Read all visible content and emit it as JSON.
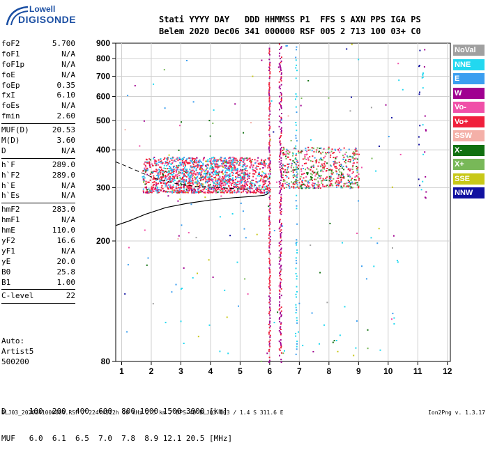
{
  "logo": {
    "top": "Lowell",
    "bottom": "DIGISONDE"
  },
  "header": {
    "line1": "Stati YYYY DAY   DDD HHMMSS P1  FFS S AXN PPS IGA PS",
    "line2": "Belem 2020 Dec06 341 000000 RSF 005 2 713 100 03+ C0"
  },
  "params": [
    {
      "k": "foF2",
      "v": "5.700"
    },
    {
      "k": "foF1",
      "v": "N/A"
    },
    {
      "k": "foF1p",
      "v": "N/A"
    },
    {
      "k": "foE",
      "v": "N/A"
    },
    {
      "k": "foEp",
      "v": "0.35"
    },
    {
      "k": "fxI",
      "v": "6.10"
    },
    {
      "k": "foEs",
      "v": "N/A"
    },
    {
      "k": "fmin",
      "v": "2.60"
    },
    {
      "sep": true
    },
    {
      "k": "MUF(D)",
      "v": "20.53"
    },
    {
      "k": "M(D)",
      "v": "3.60"
    },
    {
      "k": "D",
      "v": "N/A"
    },
    {
      "sep": true
    },
    {
      "k": "h`F",
      "v": "289.0"
    },
    {
      "k": "h`F2",
      "v": "289.0"
    },
    {
      "k": "h`E",
      "v": "N/A"
    },
    {
      "k": "h`Es",
      "v": "N/A"
    },
    {
      "sep": true
    },
    {
      "k": "hmF2",
      "v": "283.0"
    },
    {
      "k": "hmF1",
      "v": "N/A"
    },
    {
      "k": "hmE",
      "v": "110.0"
    },
    {
      "k": "yF2",
      "v": "16.6"
    },
    {
      "k": "yF1",
      "v": "N/A"
    },
    {
      "k": "yE",
      "v": "20.0"
    },
    {
      "k": "B0",
      "v": "25.8"
    },
    {
      "k": "B1",
      "v": "1.00"
    },
    {
      "sep": true
    },
    {
      "k": "C-level",
      "v": "22"
    },
    {
      "sep": true
    }
  ],
  "auto": {
    "line1": "Auto:",
    "line2": "Artist5",
    "line3": "500200"
  },
  "legend": [
    {
      "label": "NoVal",
      "color": "#a0a0a0"
    },
    {
      "label": "NNE",
      "color": "#22d8f0"
    },
    {
      "label": "E",
      "color": "#3a9ef0"
    },
    {
      "label": "W",
      "color": "#a00090"
    },
    {
      "label": "Vo-",
      "color": "#f050a8"
    },
    {
      "label": "Vo+",
      "color": "#f0203c"
    },
    {
      "label": "SSW",
      "color": "#f4b0a8"
    },
    {
      "label": "X-",
      "color": "#107010"
    },
    {
      "label": "X+",
      "color": "#78b858"
    },
    {
      "label": "SSE",
      "color": "#c8c818"
    },
    {
      "label": "NNW",
      "color": "#1010a0"
    }
  ],
  "bottom": {
    "line1": "D     100  200  400  600  800 1000 1500 3000 [km]",
    "line2": "MUF   6.0  6.1  6.5  7.0  7.8  8.9 12.1 20.5 [MHz]"
  },
  "footer": {
    "left": "BLJ03_2020341000000.RSF / 224fx512h 50 kHz 2.5 km / DPS-4D BLJ03 103 / 1.4 S 311.6 E",
    "right": "Ion2Png v. 1.3.17"
  },
  "chart_data": {
    "type": "scatter",
    "xlim": [
      0.8,
      12.1
    ],
    "ylim": [
      80,
      900
    ],
    "y_scale": "log",
    "xticks": [
      1,
      2,
      3,
      4,
      5,
      6,
      7,
      8,
      9,
      10,
      11,
      12
    ],
    "yticks": [
      80,
      200,
      300,
      400,
      500,
      600,
      700,
      800,
      900
    ],
    "dashed_trace": [
      [
        0.8,
        365
      ],
      [
        1.2,
        352
      ],
      [
        1.7,
        335
      ],
      [
        2.2,
        320
      ],
      [
        2.8,
        310
      ],
      [
        3.5,
        303
      ],
      [
        4.2,
        300
      ],
      [
        4.8,
        298
      ],
      [
        5.3,
        296
      ]
    ],
    "profile_curve": [
      [
        0.8,
        225
      ],
      [
        1.2,
        232
      ],
      [
        1.8,
        245
      ],
      [
        2.5,
        258
      ],
      [
        3.2,
        266
      ],
      [
        4.0,
        273
      ],
      [
        4.8,
        278
      ],
      [
        5.5,
        281
      ],
      [
        5.8,
        283
      ],
      [
        5.9,
        285
      ],
      [
        5.95,
        288
      ]
    ]
  }
}
